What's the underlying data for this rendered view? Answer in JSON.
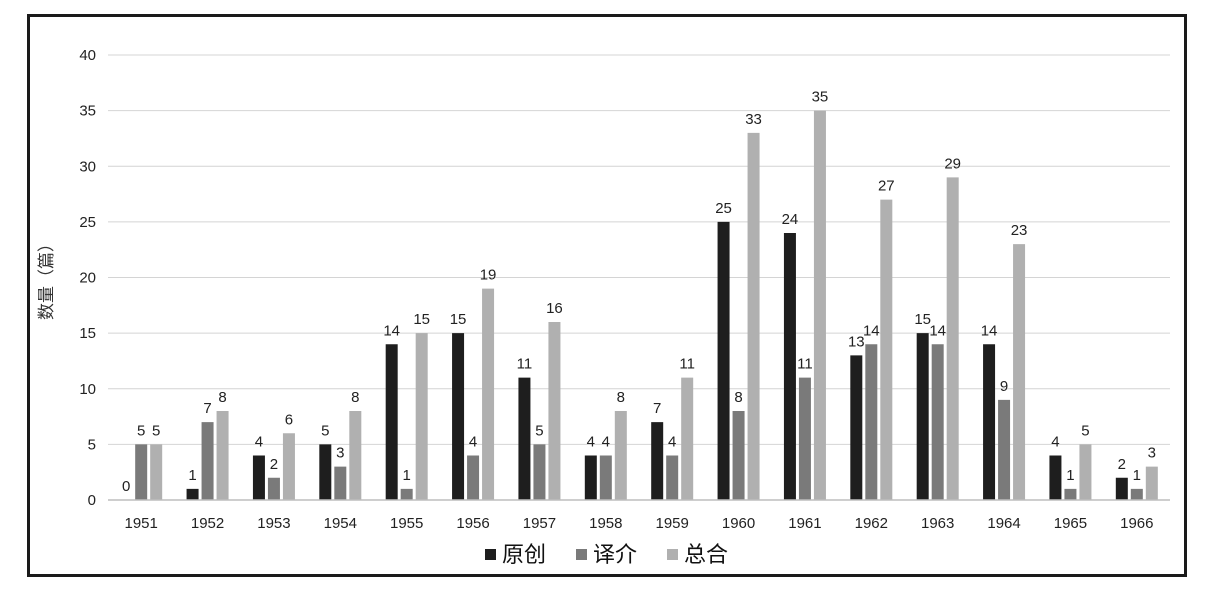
{
  "chart_data": {
    "type": "bar",
    "title": "",
    "xlabel": "",
    "ylabel": "数量（篇）",
    "categories": [
      "1951",
      "1952",
      "1953",
      "1954",
      "1955",
      "1956",
      "1957",
      "1958",
      "1959",
      "1960",
      "1961",
      "1962",
      "1963",
      "1964",
      "1965",
      "1966"
    ],
    "series": [
      {
        "name": "原创",
        "color": "#1e1e1e",
        "values": [
          0,
          1,
          4,
          5,
          14,
          15,
          11,
          4,
          7,
          25,
          24,
          13,
          15,
          14,
          4,
          2
        ]
      },
      {
        "name": "译介",
        "color": "#7a7a7a",
        "values": [
          5,
          7,
          2,
          3,
          1,
          4,
          5,
          4,
          4,
          8,
          11,
          14,
          14,
          9,
          1,
          1
        ]
      },
      {
        "name": "总合",
        "color": "#b0b0b0",
        "values": [
          5,
          8,
          6,
          8,
          15,
          19,
          16,
          8,
          11,
          33,
          35,
          27,
          29,
          23,
          5,
          3
        ]
      }
    ],
    "ylim": [
      0,
      40
    ],
    "yticks": [
      "0",
      "5",
      "10",
      "15",
      "20",
      "25",
      "30",
      "35",
      "40"
    ],
    "grid": true,
    "legend_position": "bottom-center"
  }
}
